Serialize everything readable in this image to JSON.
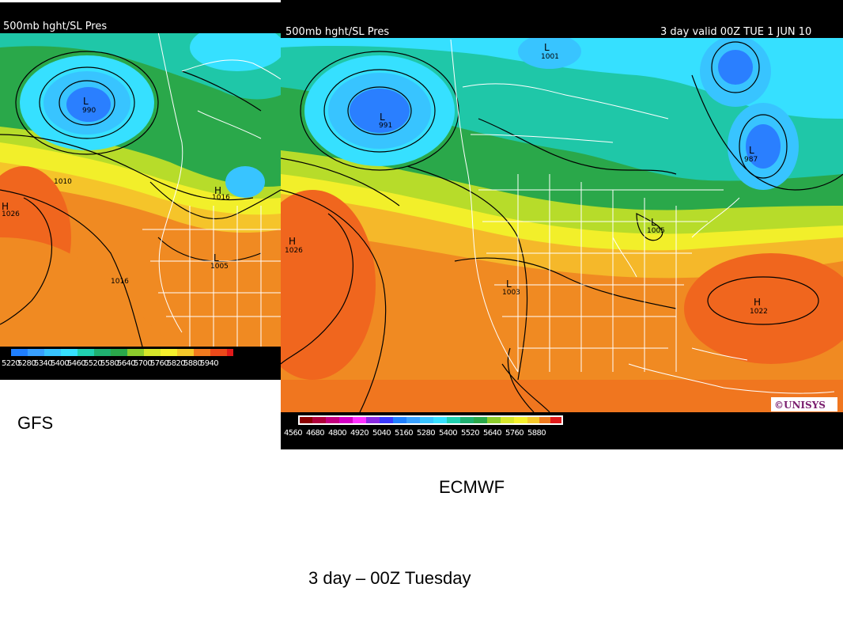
{
  "gfs": {
    "header_title": "500mb hght/SL Pres",
    "color_scale": [
      "5220",
      "5280",
      "5340",
      "5400",
      "5460",
      "5520",
      "5580",
      "5640",
      "5700",
      "5760",
      "5820",
      "5880",
      "5940"
    ],
    "pressure_labels": [
      {
        "type": "L",
        "value": "990"
      },
      {
        "type": "L",
        "value": "1010"
      },
      {
        "type": "H",
        "value": "1016"
      },
      {
        "type": "H",
        "value": "1026"
      },
      {
        "type": "L",
        "value": "1005"
      },
      {
        "type": "",
        "value": "1016"
      }
    ],
    "caption": "GFS"
  },
  "ecmwf": {
    "header_title": "500mb hght/SL Pres",
    "header_valid": "3 day valid 00Z TUE   1 JUN 10",
    "color_scale": [
      "4560",
      "4680",
      "4800",
      "4920",
      "5040",
      "5160",
      "5280",
      "5400",
      "5520",
      "5640",
      "5760",
      "5880"
    ],
    "pressure_labels": [
      {
        "type": "L",
        "value": "991"
      },
      {
        "type": "L",
        "value": "1001"
      },
      {
        "type": "L",
        "value": "987"
      },
      {
        "type": "L",
        "value": "1005"
      },
      {
        "type": "H",
        "value": "1026"
      },
      {
        "type": "L",
        "value": "1003"
      },
      {
        "type": "H",
        "value": "1022"
      }
    ],
    "logo_text": "©UNISYS",
    "caption": "ECMWF"
  },
  "footer": {
    "caption": "3 day – 00Z Tuesday"
  },
  "colors": {
    "deep_blue": "#2a7fff",
    "cyan": "#38d8ff",
    "teal": "#1fc7a8",
    "green": "#2aa84a",
    "yellow_green": "#b7dc2a",
    "yellow": "#f2ef2a",
    "orange": "#f59a22",
    "red_orange": "#f0661e",
    "scale_ramp": [
      "#8b0000",
      "#b0003a",
      "#c4007e",
      "#d400c4",
      "#8a2be2",
      "#3a3aff",
      "#1f7fff",
      "#38c4ff",
      "#36e0ff",
      "#20d0b0",
      "#1fb070",
      "#2aa84a",
      "#8ccc2c",
      "#d6e62a",
      "#f5f02c",
      "#f5c82a",
      "#f5a022",
      "#f07a1e",
      "#ec4a1a",
      "#e01a1a"
    ]
  }
}
